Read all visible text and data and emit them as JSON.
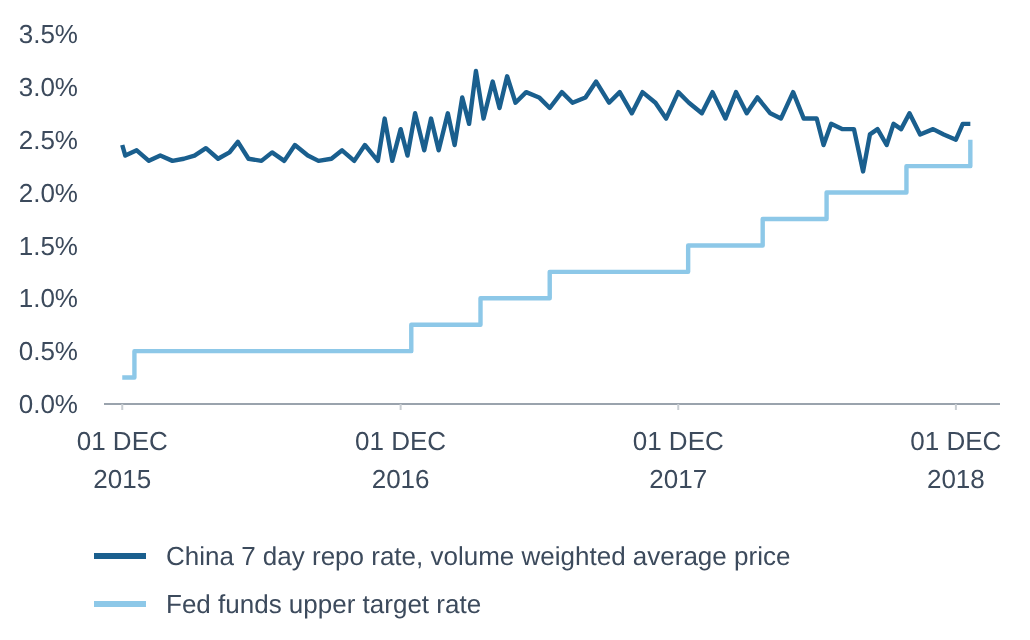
{
  "chart_data": {
    "type": "line",
    "xlim": [
      "2015-11-07",
      "2019-01-28"
    ],
    "ylim": [
      0,
      3.5
    ],
    "xticks": [
      {
        "value": "2015-12-01",
        "label": "01 DEC\n2015"
      },
      {
        "value": "2016-12-01",
        "label": "01 DEC\n2016"
      },
      {
        "value": "2017-12-01",
        "label": "01 DEC\n2017"
      },
      {
        "value": "2018-12-01",
        "label": "01 DEC\n2018"
      }
    ],
    "yticks": [
      {
        "value": 0,
        "label": "0.0%"
      },
      {
        "value": 0.5,
        "label": "0.5%"
      },
      {
        "value": 1,
        "label": "1.0%"
      },
      {
        "value": 1.5,
        "label": "1.5%"
      },
      {
        "value": 2,
        "label": "2.0%"
      },
      {
        "value": 2.5,
        "label": "2.5%"
      },
      {
        "value": 3,
        "label": "3.0%"
      },
      {
        "value": 3.5,
        "label": "3.5%"
      }
    ],
    "grid": false,
    "legend": "bottom",
    "line_style": "solid",
    "marker": "none",
    "series": [
      {
        "name": "China 7 day repo rate, volume weighted average price",
        "color": "#1a5f8e",
        "x": [
          "2015-12-01",
          "2015-12-05",
          "2015-12-20",
          "2016-01-05",
          "2016-01-20",
          "2016-02-05",
          "2016-02-20",
          "2016-03-05",
          "2016-03-20",
          "2016-04-05",
          "2016-04-20",
          "2016-05-01",
          "2016-05-15",
          "2016-06-01",
          "2016-06-15",
          "2016-07-01",
          "2016-07-15",
          "2016-08-01",
          "2016-08-15",
          "2016-09-01",
          "2016-09-15",
          "2016-10-01",
          "2016-10-15",
          "2016-11-01",
          "2016-11-10",
          "2016-11-20",
          "2016-12-01",
          "2016-12-10",
          "2016-12-20",
          "2017-01-01",
          "2017-01-10",
          "2017-01-20",
          "2017-02-01",
          "2017-02-10",
          "2017-02-20",
          "2017-03-01",
          "2017-03-10",
          "2017-03-20",
          "2017-04-01",
          "2017-04-10",
          "2017-04-20",
          "2017-05-01",
          "2017-05-15",
          "2017-06-01",
          "2017-06-15",
          "2017-07-01",
          "2017-07-15",
          "2017-08-01",
          "2017-08-15",
          "2017-09-01",
          "2017-09-15",
          "2017-10-01",
          "2017-10-15",
          "2017-11-01",
          "2017-11-15",
          "2017-12-01",
          "2017-12-15",
          "2018-01-01",
          "2018-01-15",
          "2018-02-01",
          "2018-02-15",
          "2018-03-01",
          "2018-03-15",
          "2018-04-01",
          "2018-04-15",
          "2018-05-01",
          "2018-05-15",
          "2018-06-01",
          "2018-06-10",
          "2018-06-20",
          "2018-07-05",
          "2018-07-20",
          "2018-08-01",
          "2018-08-10",
          "2018-08-20",
          "2018-09-01",
          "2018-09-10",
          "2018-09-20",
          "2018-10-01",
          "2018-10-15",
          "2018-11-01",
          "2018-11-15",
          "2018-12-01",
          "2018-12-10",
          "2018-12-20"
        ],
        "values": [
          2.45,
          2.35,
          2.4,
          2.3,
          2.35,
          2.3,
          2.32,
          2.35,
          2.42,
          2.32,
          2.38,
          2.48,
          2.32,
          2.3,
          2.38,
          2.3,
          2.45,
          2.35,
          2.3,
          2.32,
          2.4,
          2.3,
          2.45,
          2.3,
          2.7,
          2.3,
          2.6,
          2.35,
          2.75,
          2.4,
          2.7,
          2.4,
          2.75,
          2.45,
          2.9,
          2.65,
          3.15,
          2.7,
          3.05,
          2.8,
          3.1,
          2.85,
          2.95,
          2.9,
          2.8,
          2.95,
          2.85,
          2.9,
          3.05,
          2.85,
          2.95,
          2.75,
          2.95,
          2.85,
          2.7,
          2.95,
          2.85,
          2.75,
          2.95,
          2.7,
          2.95,
          2.75,
          2.9,
          2.75,
          2.7,
          2.95,
          2.7,
          2.7,
          2.45,
          2.65,
          2.6,
          2.6,
          2.2,
          2.55,
          2.6,
          2.45,
          2.65,
          2.6,
          2.75,
          2.55,
          2.6,
          2.55,
          2.5,
          2.65,
          2.65
        ]
      },
      {
        "name": "Fed funds upper target rate",
        "color": "#8dc8e8",
        "type": "step",
        "x": [
          "2015-12-01",
          "2015-12-17",
          "2016-12-15",
          "2017-03-16",
          "2017-06-15",
          "2017-12-14",
          "2018-03-22",
          "2018-06-14",
          "2018-09-27",
          "2018-12-20"
        ],
        "values": [
          0.25,
          0.5,
          0.75,
          1,
          1.25,
          1.5,
          1.75,
          2,
          2.25,
          2.5
        ]
      }
    ]
  }
}
